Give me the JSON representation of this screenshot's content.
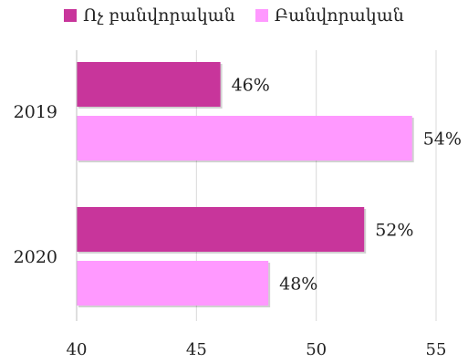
{
  "chart_data": {
    "type": "bar",
    "orientation": "horizontal",
    "categories": [
      "2019",
      "2020"
    ],
    "series": [
      {
        "name": "Ոչ բանվորական",
        "values": [
          46,
          52
        ],
        "labels": [
          "46%",
          "52%"
        ],
        "color": "#c8359b"
      },
      {
        "name": "Բանվորական",
        "values": [
          54,
          48
        ],
        "labels": [
          "54%",
          "48%"
        ],
        "color": "#ff99ff"
      }
    ],
    "xlim": [
      40,
      55
    ],
    "xticks": [
      "40",
      "45",
      "50",
      "55"
    ],
    "grid": "vertical",
    "legend_position": "top"
  }
}
